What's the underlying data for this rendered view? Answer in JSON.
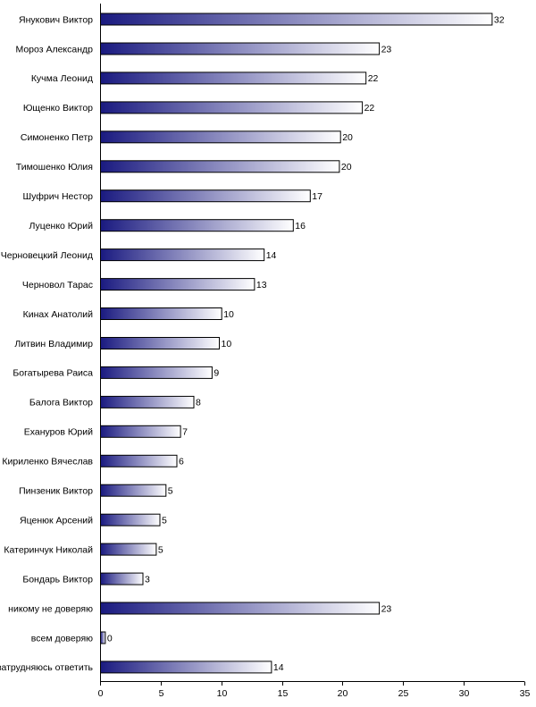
{
  "chart_data": {
    "type": "bar",
    "orientation": "horizontal",
    "categories": [
      "Янукович Виктор",
      "Мороз Александр",
      "Кучма Леонид",
      "Ющенко Виктор",
      "Симоненко Петр",
      "Тимошенко Юлия",
      "Шуфрич Нестор",
      "Луценко Юрий",
      "Черновецкий Леонид",
      "Черновол Тарас",
      "Кинах Анатолий",
      "Литвин Владимир",
      "Богатырева Раиса",
      "Балога Виктор",
      "Ехануров Юрий",
      "Кириленко Вячеслав",
      "Пинзеник Виктор",
      "Яценюк Арсений",
      "Катеринчук Николай",
      "Бондарь Виктор",
      "никому не доверяю",
      "всем доверяю",
      "затрудняюсь ответить"
    ],
    "values": [
      32,
      23,
      22,
      22,
      20,
      20,
      17,
      16,
      14,
      13,
      10,
      10,
      9,
      8,
      7,
      6,
      5,
      5,
      5,
      3,
      23,
      0,
      14
    ],
    "bar_extent": [
      32.3,
      23.0,
      21.9,
      21.6,
      19.8,
      19.7,
      17.3,
      15.9,
      13.5,
      12.7,
      10.0,
      9.8,
      9.2,
      7.7,
      6.6,
      6.3,
      5.4,
      4.9,
      4.6,
      3.5,
      23.0,
      0.4,
      14.1
    ],
    "xlim": [
      0,
      35
    ],
    "xticks": [
      0,
      5,
      10,
      15,
      20,
      25,
      30,
      35
    ],
    "title": "",
    "xlabel": "",
    "ylabel": "",
    "grid": false,
    "legend": "none",
    "colors": {
      "bar_dark": "#1a1a80",
      "bar_light": "#ffffff",
      "bar_outline": "#000000",
      "text": "#000000"
    }
  }
}
